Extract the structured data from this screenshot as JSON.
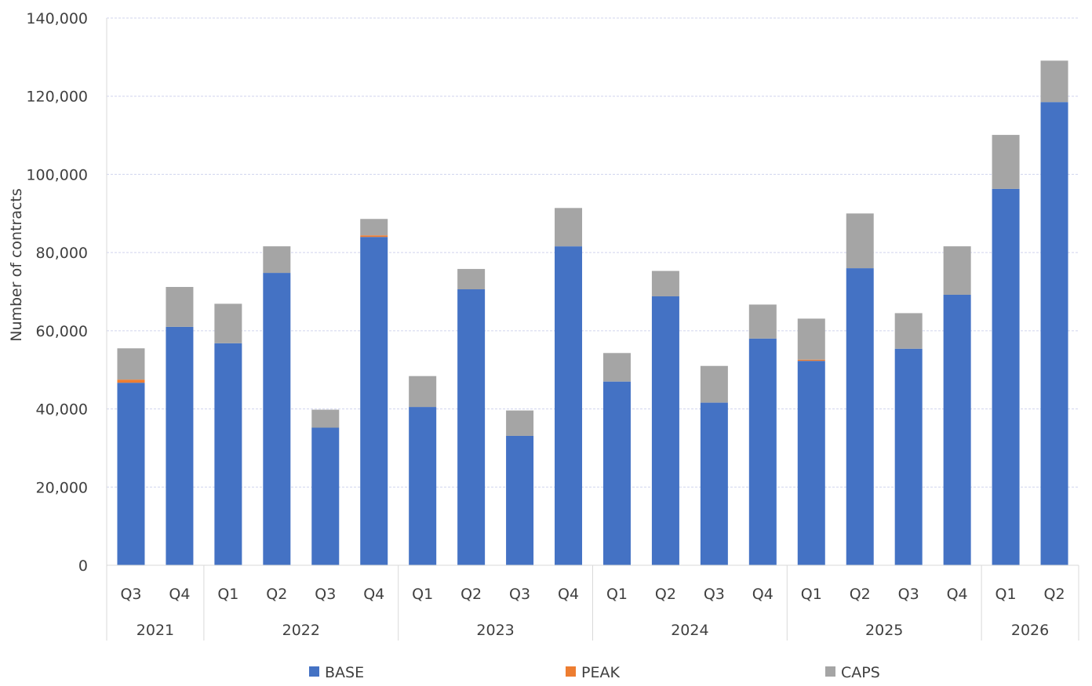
{
  "chart_data": {
    "type": "bar",
    "stacked": true,
    "ylabel": "Number of contracts",
    "xlabel": "",
    "ylim": [
      0,
      140000
    ],
    "yticks": [
      0,
      20000,
      40000,
      60000,
      80000,
      100000,
      120000,
      140000
    ],
    "ytick_labels": [
      "0",
      "20,000",
      "40,000",
      "60,000",
      "80,000",
      "100,000",
      "120,000",
      "140,000"
    ],
    "grid": true,
    "legend_position": "bottom",
    "categories": [
      "Q3",
      "Q4",
      "Q1",
      "Q2",
      "Q3",
      "Q4",
      "Q1",
      "Q2",
      "Q3",
      "Q4",
      "Q1",
      "Q2",
      "Q3",
      "Q4",
      "Q1",
      "Q2",
      "Q3",
      "Q4",
      "Q1",
      "Q2"
    ],
    "groups": [
      {
        "label": "2021",
        "count": 2
      },
      {
        "label": "2022",
        "count": 4
      },
      {
        "label": "2023",
        "count": 4
      },
      {
        "label": "2024",
        "count": 4
      },
      {
        "label": "2025",
        "count": 4
      },
      {
        "label": "2026",
        "count": 2
      }
    ],
    "series": [
      {
        "name": "BASE",
        "color": "#4472C4",
        "values": [
          46700,
          61000,
          56800,
          74800,
          35200,
          84000,
          40500,
          70600,
          33100,
          81600,
          47000,
          68800,
          41600,
          58000,
          52300,
          76000,
          55400,
          69200,
          96300,
          118500
        ]
      },
      {
        "name": "PEAK",
        "color": "#ED7D31",
        "values": [
          800,
          0,
          0,
          0,
          0,
          400,
          0,
          0,
          0,
          0,
          0,
          0,
          0,
          0,
          300,
          0,
          0,
          0,
          0,
          0
        ]
      },
      {
        "name": "CAPS",
        "color": "#A5A5A5",
        "values": [
          8000,
          10200,
          10100,
          6800,
          4600,
          4200,
          7900,
          5200,
          6500,
          9800,
          7300,
          6500,
          9400,
          8700,
          10500,
          14000,
          9100,
          12400,
          13800,
          10600
        ]
      }
    ]
  }
}
